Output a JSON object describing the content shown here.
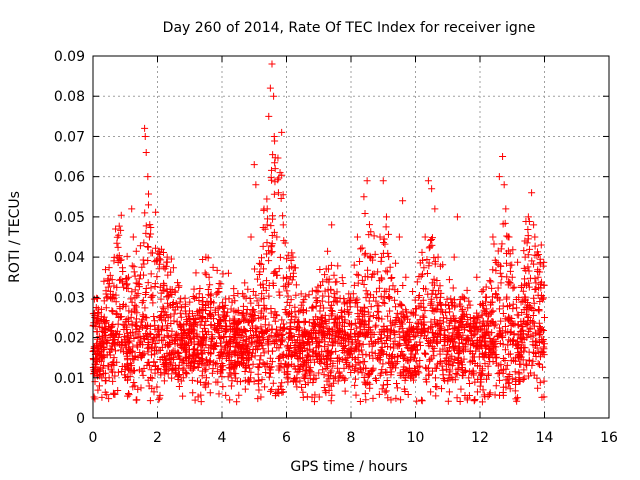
{
  "chart_data": {
    "type": "scatter",
    "title": "Day 260 of 2014, Rate Of TEC Index for receiver igne",
    "xlabel": "GPS time / hours",
    "ylabel": "ROTI / TECUs",
    "xlim": [
      0,
      16
    ],
    "ylim": [
      0,
      0.09
    ],
    "grid": true,
    "marker": "+",
    "series_color": "#ff0000",
    "xticks": [
      0,
      2,
      4,
      6,
      8,
      10,
      12,
      14,
      16
    ],
    "xtick_labels": [
      "0",
      "2",
      "4",
      "6",
      "8",
      "10",
      "12",
      "14",
      "16"
    ],
    "yticks": [
      0,
      0.01,
      0.02,
      0.03,
      0.04,
      0.05,
      0.06,
      0.07,
      0.08,
      0.09
    ],
    "ytick_labels": [
      "0",
      "0.01",
      "0.02",
      "0.03",
      "0.04",
      "0.05",
      "0.06",
      "0.07",
      "0.08",
      "0.09"
    ],
    "series": [
      {
        "name": "ROTI",
        "description_of_density": "dense band 0.005-0.025 TECUs across 0-14 h",
        "points": [
          [
            0.05,
            0.026
          ],
          [
            0.1,
            0.018
          ],
          [
            0.15,
            0.012
          ],
          [
            0.2,
            0.008
          ],
          [
            0.3,
            0.015
          ],
          [
            0.4,
            0.022
          ],
          [
            0.5,
            0.01
          ],
          [
            0.6,
            0.03
          ],
          [
            0.7,
            0.047
          ],
          [
            0.75,
            0.04
          ],
          [
            0.8,
            0.025
          ],
          [
            0.9,
            0.018
          ],
          [
            1.0,
            0.012
          ],
          [
            1.1,
            0.035
          ],
          [
            1.2,
            0.052
          ],
          [
            1.25,
            0.045
          ],
          [
            1.3,
            0.028
          ],
          [
            1.4,
            0.02
          ],
          [
            1.5,
            0.015
          ],
          [
            1.6,
            0.072
          ],
          [
            1.62,
            0.07
          ],
          [
            1.65,
            0.066
          ],
          [
            1.7,
            0.06
          ],
          [
            1.72,
            0.053
          ],
          [
            1.75,
            0.045
          ],
          [
            1.8,
            0.03
          ],
          [
            1.9,
            0.02
          ],
          [
            2.0,
            0.012
          ],
          [
            2.1,
            0.025
          ],
          [
            2.2,
            0.033
          ],
          [
            2.3,
            0.04
          ],
          [
            2.4,
            0.028
          ],
          [
            2.5,
            0.015
          ],
          [
            2.6,
            0.02
          ],
          [
            2.7,
            0.018
          ],
          [
            2.8,
            0.01
          ],
          [
            3.0,
            0.022
          ],
          [
            3.2,
            0.03
          ],
          [
            3.4,
            0.025
          ],
          [
            3.5,
            0.04
          ],
          [
            3.6,
            0.035
          ],
          [
            3.8,
            0.018
          ],
          [
            4.0,
            0.012
          ],
          [
            4.1,
            0.028
          ],
          [
            4.2,
            0.036
          ],
          [
            4.4,
            0.02
          ],
          [
            4.6,
            0.015
          ],
          [
            4.8,
            0.032
          ],
          [
            4.9,
            0.045
          ],
          [
            5.0,
            0.063
          ],
          [
            5.05,
            0.058
          ],
          [
            5.1,
            0.02
          ],
          [
            5.3,
            0.028
          ],
          [
            5.4,
            0.048
          ],
          [
            5.45,
            0.075
          ],
          [
            5.5,
            0.082
          ],
          [
            5.55,
            0.088
          ],
          [
            5.6,
            0.08
          ],
          [
            5.62,
            0.07
          ],
          [
            5.65,
            0.062
          ],
          [
            5.7,
            0.045
          ],
          [
            5.75,
            0.056
          ],
          [
            5.8,
            0.061
          ],
          [
            5.85,
            0.071
          ],
          [
            5.9,
            0.048
          ],
          [
            6.0,
            0.035
          ],
          [
            6.1,
            0.028
          ],
          [
            6.2,
            0.04
          ],
          [
            6.3,
            0.022
          ],
          [
            6.5,
            0.015
          ],
          [
            6.7,
            0.012
          ],
          [
            6.9,
            0.02
          ],
          [
            7.0,
            0.018
          ],
          [
            7.1,
            0.025
          ],
          [
            7.3,
            0.037
          ],
          [
            7.4,
            0.048
          ],
          [
            7.5,
            0.03
          ],
          [
            7.7,
            0.02
          ],
          [
            7.9,
            0.015
          ],
          [
            8.0,
            0.022
          ],
          [
            8.1,
            0.038
          ],
          [
            8.2,
            0.045
          ],
          [
            8.4,
            0.055
          ],
          [
            8.5,
            0.059
          ],
          [
            8.6,
            0.04
          ],
          [
            8.7,
            0.03
          ],
          [
            8.8,
            0.025
          ],
          [
            8.9,
            0.045
          ],
          [
            9.0,
            0.059
          ],
          [
            9.1,
            0.05
          ],
          [
            9.2,
            0.03
          ],
          [
            9.4,
            0.025
          ],
          [
            9.5,
            0.045
          ],
          [
            9.6,
            0.054
          ],
          [
            9.7,
            0.035
          ],
          [
            9.9,
            0.022
          ],
          [
            10.1,
            0.03
          ],
          [
            10.3,
            0.045
          ],
          [
            10.4,
            0.059
          ],
          [
            10.5,
            0.057
          ],
          [
            10.6,
            0.052
          ],
          [
            10.7,
            0.04
          ],
          [
            10.8,
            0.028
          ],
          [
            11.0,
            0.022
          ],
          [
            11.2,
            0.04
          ],
          [
            11.3,
            0.05
          ],
          [
            11.5,
            0.03
          ],
          [
            11.7,
            0.025
          ],
          [
            11.9,
            0.035
          ],
          [
            12.0,
            0.02
          ],
          [
            12.2,
            0.03
          ],
          [
            12.4,
            0.045
          ],
          [
            12.6,
            0.06
          ],
          [
            12.7,
            0.065
          ],
          [
            12.75,
            0.058
          ],
          [
            12.8,
            0.052
          ],
          [
            12.9,
            0.045
          ],
          [
            13.0,
            0.035
          ],
          [
            13.2,
            0.03
          ],
          [
            13.4,
            0.04
          ],
          [
            13.5,
            0.05
          ],
          [
            13.6,
            0.056
          ],
          [
            13.7,
            0.045
          ],
          [
            13.8,
            0.035
          ],
          [
            13.9,
            0.043
          ],
          [
            14.0,
            0.025
          ]
        ]
      }
    ]
  }
}
